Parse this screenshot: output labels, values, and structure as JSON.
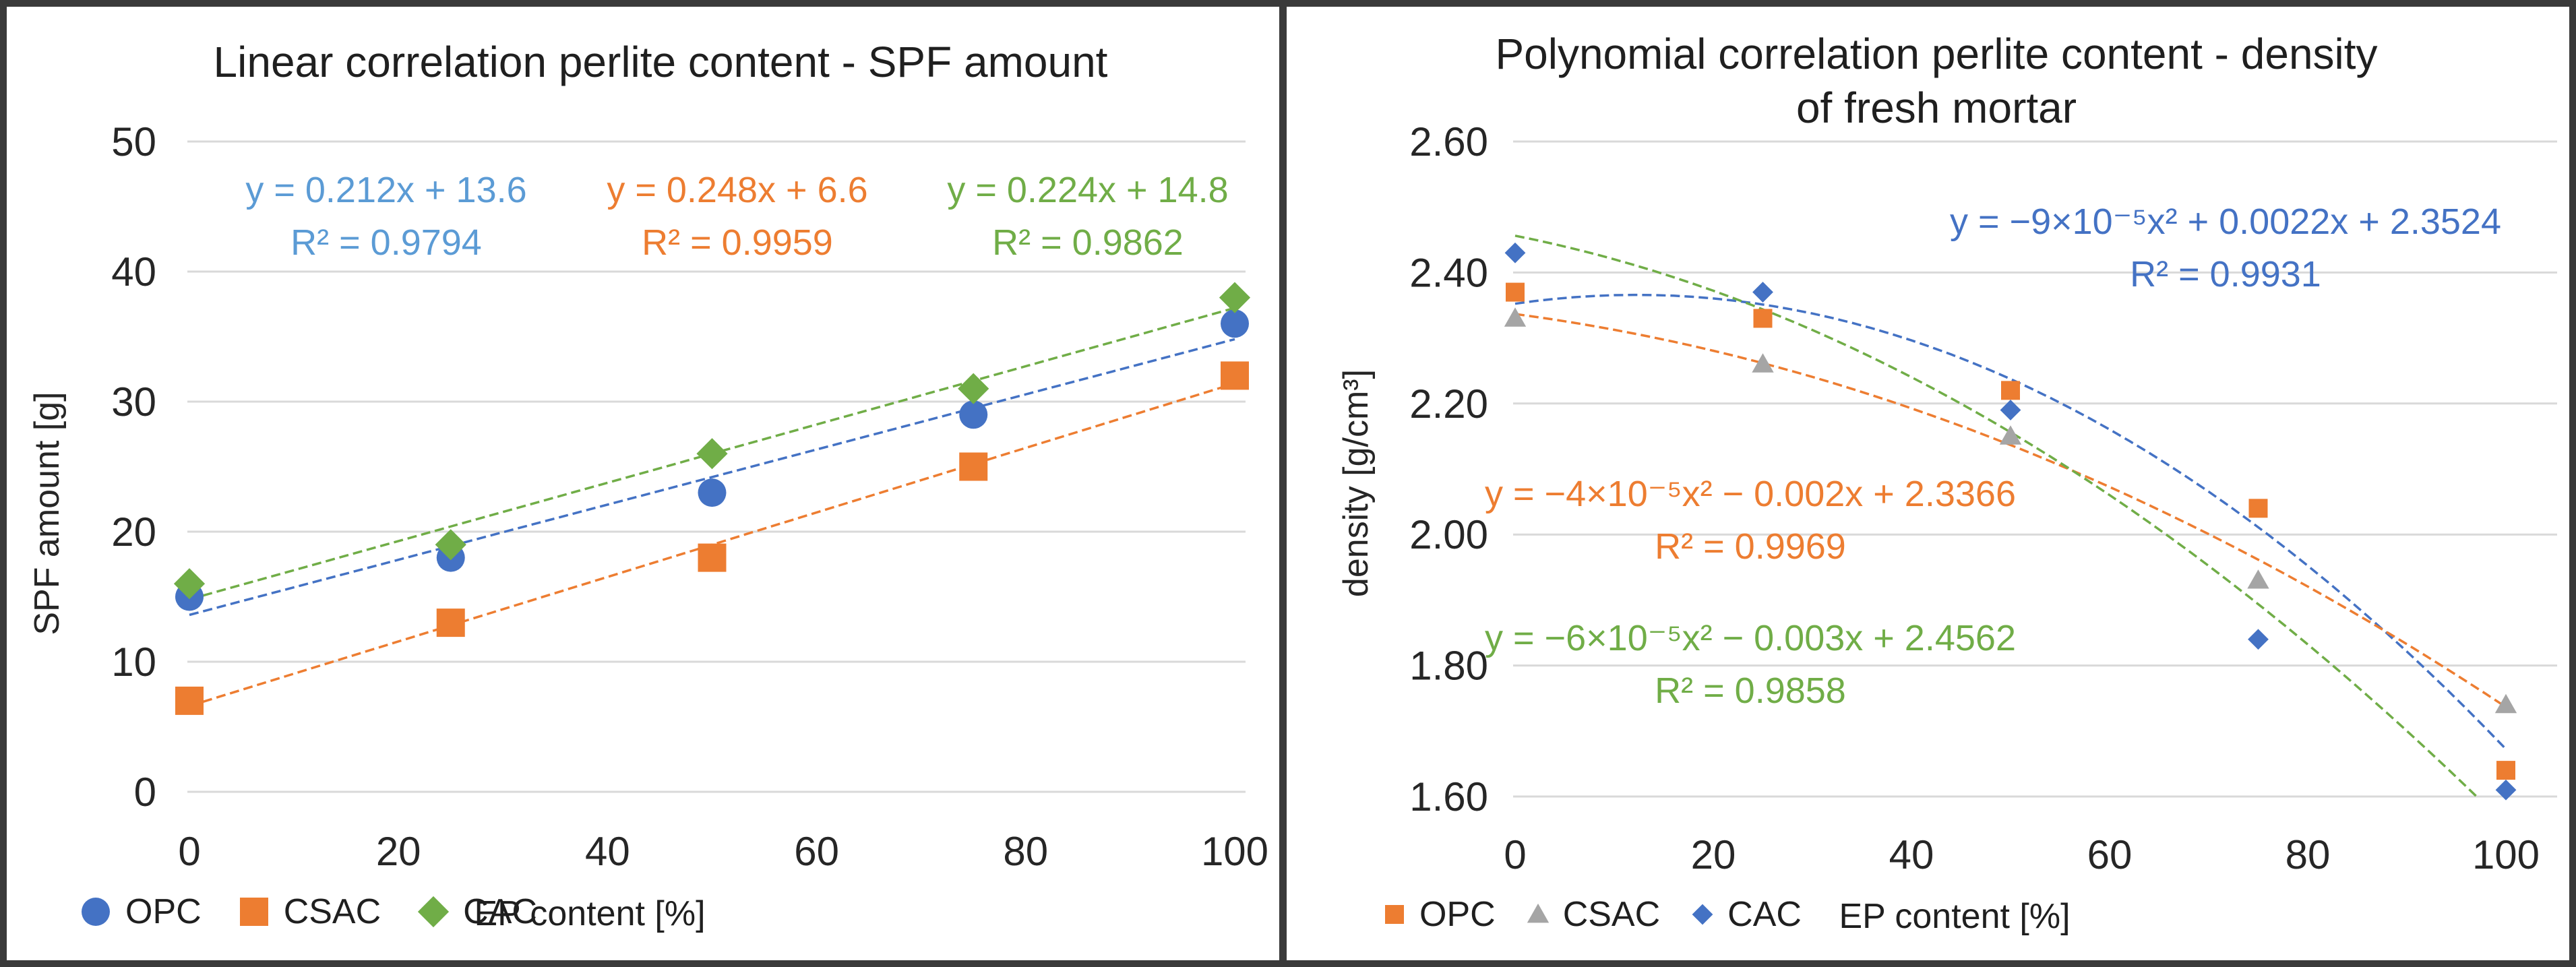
{
  "chart_data": [
    {
      "type": "scatter",
      "title": "Linear correlation perlite content - SPF amount",
      "title_lines": [
        "Linear correlation perlite content - SPF amount"
      ],
      "x_axis_label": "EP content [%]",
      "y_axis_label": "SPF amount [g]",
      "x": [
        0,
        25,
        50,
        75,
        100
      ],
      "xticks": [
        0,
        20,
        40,
        60,
        80,
        100
      ],
      "yticks": [
        0,
        10,
        20,
        30,
        40,
        50
      ],
      "xlim": [
        0,
        100
      ],
      "ylim": [
        0,
        50
      ],
      "grid": "horizontal",
      "legend_position": "bottom",
      "series": [
        {
          "name": "OPC",
          "marker": "circle",
          "color": "#4472C4",
          "values": [
            15,
            18,
            23,
            29,
            36
          ],
          "trendline": {
            "type": "linear",
            "slope": 0.212,
            "intercept": 13.6,
            "color": "#4472C4"
          }
        },
        {
          "name": "CSAC",
          "marker": "square",
          "color": "#ED7D31",
          "values": [
            7,
            13,
            18,
            25,
            32
          ],
          "trendline": {
            "type": "linear",
            "slope": 0.248,
            "intercept": 6.6,
            "color": "#ED7D31"
          }
        },
        {
          "name": "CAC",
          "marker": "diamond",
          "color": "#70AD47",
          "values": [
            16,
            19,
            26,
            31,
            38
          ],
          "trendline": {
            "type": "linear",
            "slope": 0.224,
            "intercept": 14.8,
            "color": "#70AD47"
          }
        }
      ],
      "equations": [
        {
          "series": "OPC",
          "text": "y = 0.212x + 13.6",
          "r2": "R² = 0.9794",
          "color": "#5B9BD5"
        },
        {
          "series": "CSAC",
          "text": "y = 0.248x + 6.6",
          "r2": "R² = 0.9959",
          "color": "#ED7D31"
        },
        {
          "series": "CAC",
          "text": "y = 0.224x + 14.8",
          "r2": "R² = 0.9862",
          "color": "#70AD47"
        }
      ],
      "legend": [
        {
          "label": "OPC",
          "marker": "circle",
          "color": "#4472C4"
        },
        {
          "label": "CSAC",
          "marker": "square",
          "color": "#ED7D31"
        },
        {
          "label": "CAC",
          "marker": "diamond",
          "color": "#70AD47"
        }
      ]
    },
    {
      "type": "scatter",
      "title": "Polynomial correlation perlite content - density of fresh mortar",
      "title_lines": [
        "Polynomial correlation perlite content - density",
        "of fresh mortar"
      ],
      "x_axis_label": "EP content [%]",
      "y_axis_label": "density [g/cm³]",
      "x": [
        0,
        25,
        50,
        75,
        100
      ],
      "xticks": [
        0,
        20,
        40,
        60,
        80,
        100
      ],
      "yticks": [
        "1.60",
        "1.80",
        "2.00",
        "2.20",
        "2.40",
        "2.60"
      ],
      "xlim": [
        0,
        100
      ],
      "ylim": [
        1.6,
        2.6
      ],
      "grid": "horizontal",
      "legend_position": "bottom",
      "series": [
        {
          "name": "OPC",
          "marker": "square",
          "color": "#ED7D31",
          "values": [
            2.37,
            2.33,
            2.22,
            2.04,
            1.64
          ],
          "trendline": {
            "type": "poly2",
            "a": -9e-05,
            "b": 0.0022,
            "c": 2.3524,
            "color": "#4472C4"
          }
        },
        {
          "name": "CSAC",
          "marker": "triangle",
          "color": "#A5A5A5",
          "values": [
            2.33,
            2.26,
            2.15,
            1.93,
            1.74
          ],
          "trendline": {
            "type": "poly2",
            "a": -4e-05,
            "b": -0.002,
            "c": 2.3366,
            "color": "#ED7D31"
          }
        },
        {
          "name": "CAC",
          "marker": "diamond",
          "color": "#4472C4",
          "values": [
            2.43,
            2.37,
            2.19,
            1.84,
            1.61
          ],
          "trendline": {
            "type": "poly2",
            "a": -6e-05,
            "b": -0.003,
            "c": 2.4562,
            "color": "#70AD47"
          }
        }
      ],
      "equations": [
        {
          "series": "OPC",
          "text": "y = −9×10⁻⁵x² + 0.0022x + 2.3524",
          "r2": "R² = 0.9931",
          "color": "#4472C4"
        },
        {
          "series": "CSAC",
          "text": "y = −4×10⁻⁵x² − 0.002x + 2.3366",
          "r2": "R² = 0.9969",
          "color": "#ED7D31"
        },
        {
          "series": "CAC",
          "text": "y = −6×10⁻⁵x² − 0.003x + 2.4562",
          "r2": "R² = 0.9858",
          "color": "#70AD47"
        }
      ],
      "legend": [
        {
          "label": "OPC",
          "marker": "square",
          "color": "#ED7D31"
        },
        {
          "label": "CSAC",
          "marker": "triangle",
          "color": "#A5A5A5"
        },
        {
          "label": "CAC",
          "marker": "diamond",
          "color": "#4472C4"
        }
      ]
    }
  ],
  "colors": {
    "grid": "#D9D9D9",
    "text": "#262626",
    "border": "#3a3a3a"
  }
}
